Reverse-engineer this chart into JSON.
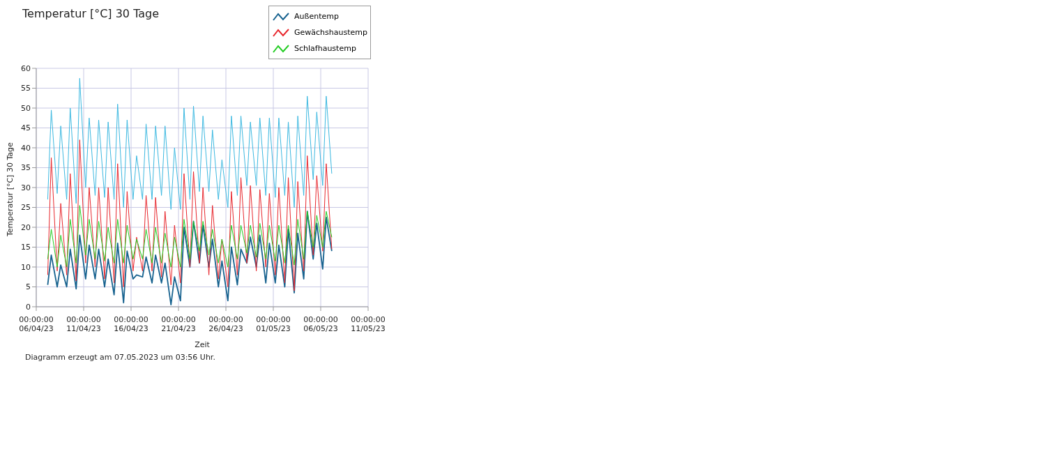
{
  "chart_data": {
    "type": "line",
    "title": "Temperatur [°C] 30 Tage",
    "xlabel": "Zeit",
    "ylabel": "Temperatur [°C] 30 Tage",
    "annotations": [
      "Diagramm erzeugt am 07.05.2023 um 03:56 Uhr."
    ],
    "x": [
      "2023-04-07T05:00",
      "2023-04-07T14:00",
      "2023-04-08T05:00",
      "2023-04-08T14:00",
      "2023-04-09T05:00",
      "2023-04-09T14:00",
      "2023-04-10T05:00",
      "2023-04-10T14:00",
      "2023-04-11T05:00",
      "2023-04-11T14:00",
      "2023-04-12T05:00",
      "2023-04-12T14:00",
      "2023-04-13T05:00",
      "2023-04-13T14:00",
      "2023-04-14T05:00",
      "2023-04-14T14:00",
      "2023-04-15T05:00",
      "2023-04-15T14:00",
      "2023-04-16T05:00",
      "2023-04-16T14:00",
      "2023-04-17T05:00",
      "2023-04-17T14:00",
      "2023-04-18T05:00",
      "2023-04-18T14:00",
      "2023-04-19T05:00",
      "2023-04-19T14:00",
      "2023-04-20T05:00",
      "2023-04-20T14:00",
      "2023-04-21T05:00",
      "2023-04-21T14:00",
      "2023-04-22T05:00",
      "2023-04-22T14:00",
      "2023-04-23T05:00",
      "2023-04-23T14:00",
      "2023-04-24T05:00",
      "2023-04-24T14:00",
      "2023-04-25T05:00",
      "2023-04-25T14:00",
      "2023-04-26T05:00",
      "2023-04-26T14:00",
      "2023-04-27T05:00",
      "2023-04-27T14:00",
      "2023-04-28T05:00",
      "2023-04-28T14:00",
      "2023-04-29T05:00",
      "2023-04-29T14:00",
      "2023-04-30T05:00",
      "2023-04-30T14:00",
      "2023-05-01T05:00",
      "2023-05-01T14:00",
      "2023-05-02T05:00",
      "2023-05-02T14:00",
      "2023-05-03T05:00",
      "2023-05-03T14:00",
      "2023-05-04T05:00",
      "2023-05-04T14:00",
      "2023-05-05T05:00",
      "2023-05-05T14:00",
      "2023-05-06T05:00",
      "2023-05-06T14:00",
      "2023-05-07T04:00"
    ],
    "series": [
      {
        "name": "Außentemp",
        "color": "#17628f",
        "values": [
          5.5,
          13,
          5,
          10.5,
          5,
          14.5,
          4.5,
          18,
          7,
          15.5,
          7,
          14.5,
          5,
          12,
          3,
          16,
          1,
          14,
          7,
          8,
          7.5,
          12.5,
          6,
          13,
          6,
          11,
          0.5,
          7.5,
          1.5,
          20,
          10,
          21.5,
          11,
          20.5,
          10,
          17,
          5,
          11.5,
          1.5,
          15,
          5.5,
          14.5,
          11,
          17.5,
          10,
          18,
          6,
          16,
          6,
          15.5,
          5,
          19.5,
          3.5,
          18.5,
          7,
          24,
          12,
          21,
          9.5,
          22.5,
          14
        ]
      },
      {
        "name": "Gewächshaustemp",
        "color": "#e8262c",
        "values": [
          8,
          37.5,
          9,
          26,
          8,
          33.5,
          6.5,
          42,
          11,
          30,
          10,
          30,
          7,
          30,
          6,
          36,
          5,
          29,
          9,
          17.5,
          9,
          28,
          9,
          27.5,
          7.5,
          24,
          5.5,
          20.5,
          6,
          33.5,
          10,
          34,
          11,
          30,
          8,
          25.5,
          7,
          17,
          5,
          29,
          8,
          32.5,
          11,
          30.5,
          9,
          29.5,
          10,
          28.5,
          8,
          30,
          6,
          32.5,
          4,
          31.5,
          9,
          38,
          13,
          33,
          14,
          36,
          14.5
        ]
      },
      {
        "name": "Schlafhaustemp",
        "color": "#22cc22",
        "values": [
          12,
          19.5,
          10,
          18,
          10,
          22,
          11,
          25.5,
          13,
          22,
          12,
          21.5,
          11.5,
          20,
          11,
          22,
          11,
          20.5,
          12,
          17,
          12,
          19.5,
          11,
          20,
          11,
          18.5,
          10,
          17.5,
          10,
          22,
          12,
          21.5,
          14,
          21.5,
          13,
          19.5,
          11,
          17,
          10,
          20.5,
          12,
          20.5,
          13.5,
          20.5,
          12.5,
          21,
          12,
          20.5,
          11.5,
          20.5,
          11,
          20.5,
          10.5,
          22,
          12,
          24,
          15,
          23,
          15,
          24,
          17.5
        ]
      },
      {
        "color": "#3bb8e0",
        "values": [
          27,
          49.5,
          28.5,
          45.5,
          27,
          50,
          26,
          57.5,
          30,
          47.5,
          28,
          47,
          27.5,
          46.5,
          27,
          51,
          25,
          47,
          27,
          38,
          27,
          46,
          27,
          45.5,
          28,
          45.5,
          24.5,
          40,
          24.5,
          50,
          27,
          50.5,
          29,
          48,
          29,
          44.5,
          27,
          37,
          25,
          48,
          28,
          48,
          30.5,
          46.5,
          30.5,
          47.5,
          28,
          47.5,
          27.5,
          47.5,
          28,
          46.5,
          25,
          48,
          28,
          53,
          32,
          49,
          30.5,
          53,
          33.5
        ]
      }
    ],
    "xlim": [
      "2023-04-06T00:00",
      "2023-05-11T00:00"
    ],
    "xticks": [
      {
        "value": "2023-04-06T00:00",
        "label": "00:00:00\n06/04/23"
      },
      {
        "value": "2023-04-11T00:00",
        "label": "00:00:00\n11/04/23"
      },
      {
        "value": "2023-04-16T00:00",
        "label": "00:00:00\n16/04/23"
      },
      {
        "value": "2023-04-21T00:00",
        "label": "00:00:00\n21/04/23"
      },
      {
        "value": "2023-04-26T00:00",
        "label": "00:00:00\n26/04/23"
      },
      {
        "value": "2023-05-01T00:00",
        "label": "00:00:00\n01/05/23"
      },
      {
        "value": "2023-05-06T00:00",
        "label": "00:00:00\n06/05/23"
      },
      {
        "value": "2023-05-11T00:00",
        "label": "00:00:00\n11/05/23"
      }
    ],
    "ylim": [
      0,
      60
    ],
    "yticks": [
      0,
      5,
      10,
      15,
      20,
      25,
      30,
      35,
      40,
      45,
      50,
      55,
      60
    ],
    "grid": true,
    "legend": "top right",
    "marker": "none",
    "line_style": "solid"
  }
}
